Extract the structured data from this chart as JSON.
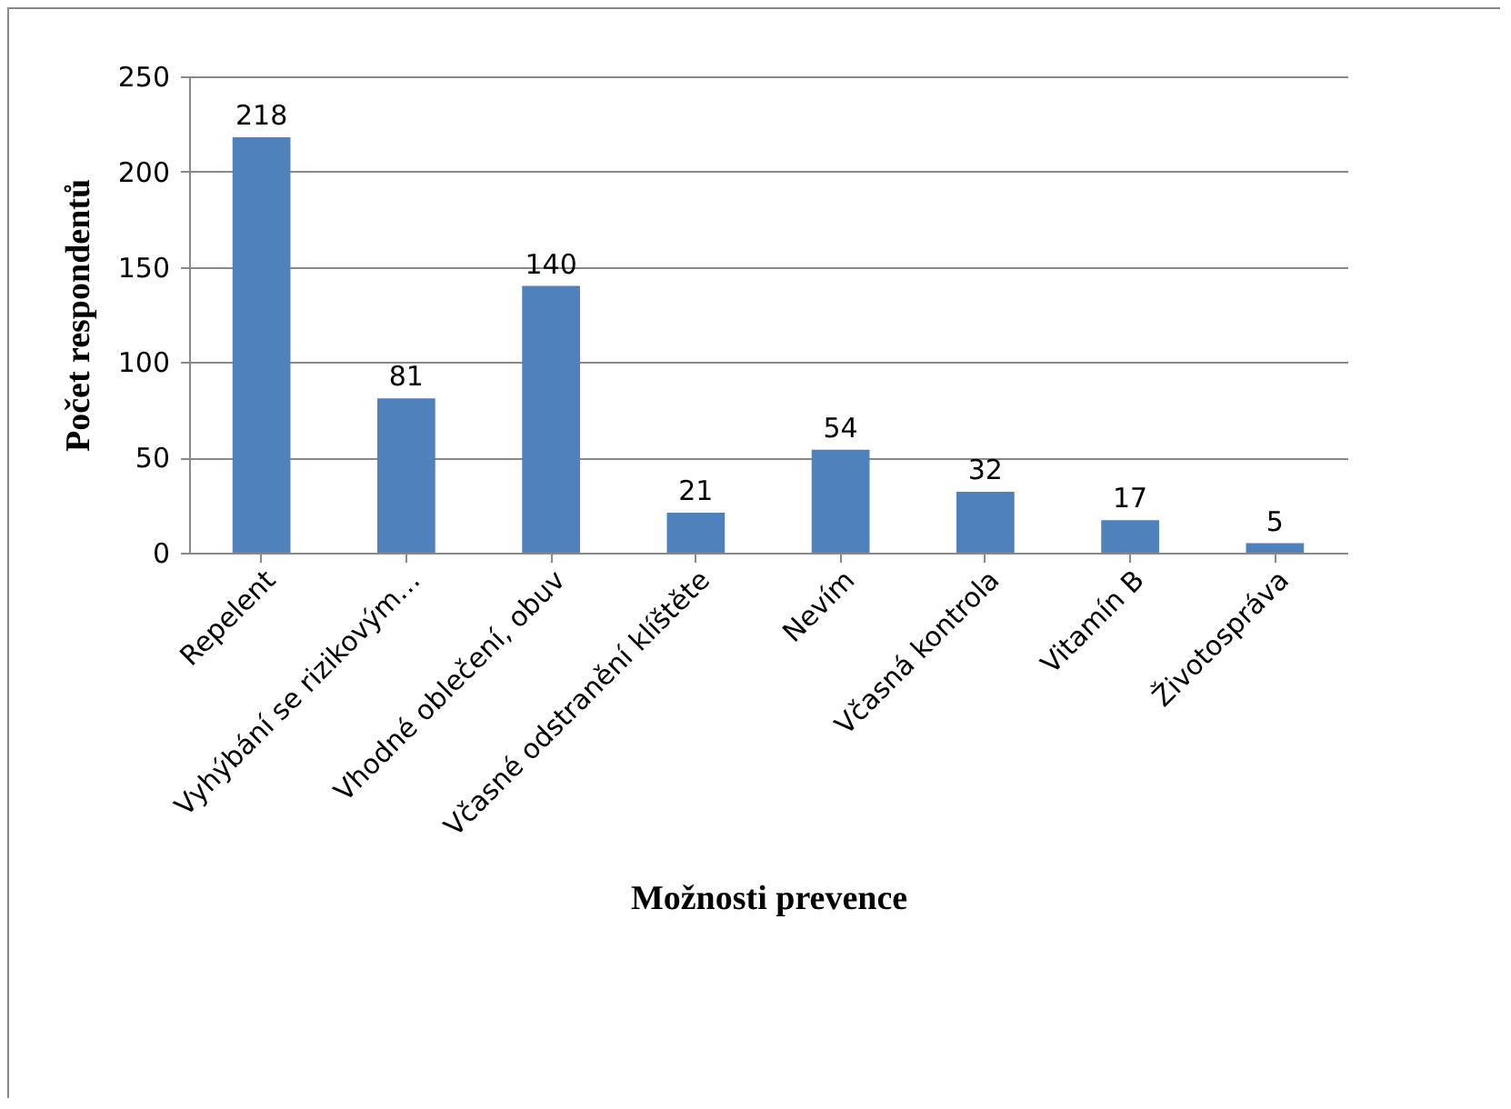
{
  "chart_data": {
    "type": "bar",
    "xlabel": "Možnosti prevence",
    "ylabel": "Počet respondentů",
    "categories": [
      "Repelent",
      "Vyhýbání se rizikovým…",
      "Vhodné oblečení, obuv",
      "Včasné odstranění klíštěte",
      "Nevím",
      "Včasná kontrola",
      "Vitamín B",
      "Životospráva"
    ],
    "values": [
      218,
      81,
      140,
      21,
      54,
      32,
      17,
      5
    ],
    "color": "#4f81bd",
    "ylim": [
      0,
      250
    ],
    "yticks": [
      0,
      50,
      100,
      150,
      200,
      250
    ],
    "grid": "y",
    "data_labels": true
  }
}
